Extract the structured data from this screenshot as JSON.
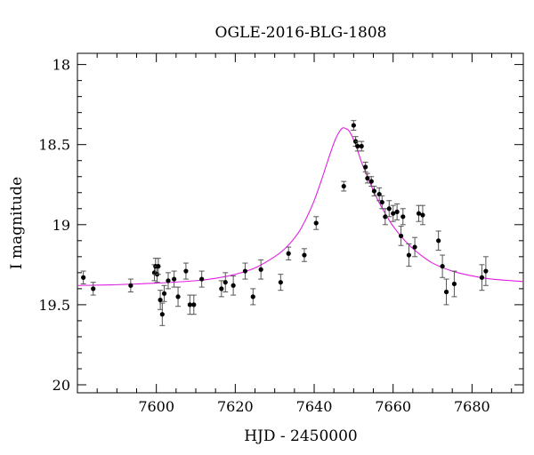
{
  "chart_data": {
    "type": "scatter",
    "title": "OGLE-2016-BLG-1808",
    "xlabel": "HJD - 2450000",
    "ylabel": "I magnitude",
    "xlim": [
      7580,
      7693
    ],
    "ylim": [
      20.05,
      17.93
    ],
    "y_inverted": true,
    "x_major_ticks": [
      7600,
      7620,
      7640,
      7660,
      7680
    ],
    "x_tick_labels": [
      "7600",
      "7620",
      "7640",
      "7660",
      "7680"
    ],
    "x_minor_step": 5,
    "y_major_ticks": [
      18,
      18.5,
      19,
      19.5,
      20
    ],
    "y_tick_labels": [
      "18",
      "18.5",
      "19",
      "19.5",
      "20"
    ],
    "y_minor_step": 0.1,
    "grid": false,
    "colors": {
      "points": "#000000",
      "model": "#e020e0",
      "axes": "#000000"
    },
    "model": {
      "name": "",
      "x": [
        7580,
        7590,
        7600,
        7610,
        7615,
        7620,
        7625,
        7630,
        7633,
        7636,
        7638,
        7640,
        7642,
        7644,
        7645.5,
        7647,
        7648,
        7649,
        7650.5,
        7652,
        7654,
        7656,
        7658,
        7660,
        7663,
        7666,
        7670,
        7675,
        7680,
        7685,
        7693
      ],
      "y": [
        19.38,
        19.375,
        19.365,
        19.35,
        19.335,
        19.31,
        19.27,
        19.2,
        19.14,
        19.05,
        18.96,
        18.85,
        18.71,
        18.56,
        18.46,
        18.4,
        18.4,
        18.42,
        18.5,
        18.61,
        18.73,
        18.84,
        18.93,
        19.01,
        19.1,
        19.17,
        19.24,
        19.29,
        19.32,
        19.34,
        19.355
      ]
    },
    "series": [
      {
        "name": "",
        "x": [
          7581.5,
          7584,
          7593.5,
          7599.5,
          7599.8,
          7600.2,
          7600.5,
          7601,
          7601.5,
          7602,
          7603,
          7604.5,
          7605.5,
          7607.5,
          7608.5,
          7609.5,
          7611.5,
          7616.5,
          7617.5,
          7619.5,
          7622.5,
          7624.5,
          7626.5,
          7631.5,
          7633.5,
          7637.5,
          7640.5,
          7647.5,
          7650,
          7650.5,
          7651,
          7652,
          7653,
          7653.5,
          7654.5,
          7655.2,
          7656.5,
          7657.2,
          7658,
          7659,
          7660,
          7661,
          7662,
          7662.5,
          7664,
          7665.5,
          7666.5,
          7667.5,
          7671.5,
          7672.5,
          7673.5,
          7675.5,
          7682.5,
          7683.5
        ],
        "y": [
          19.33,
          19.4,
          19.38,
          19.3,
          19.26,
          19.31,
          19.26,
          19.47,
          19.56,
          19.43,
          19.35,
          19.34,
          19.45,
          19.29,
          19.5,
          19.5,
          19.34,
          19.4,
          19.36,
          19.38,
          19.29,
          19.45,
          19.28,
          19.36,
          19.18,
          19.19,
          18.99,
          18.76,
          18.38,
          18.48,
          18.51,
          18.51,
          18.64,
          18.71,
          18.73,
          18.79,
          18.81,
          18.86,
          18.95,
          18.9,
          18.93,
          18.92,
          19.07,
          18.95,
          19.19,
          19.14,
          18.93,
          18.94,
          19.1,
          19.26,
          19.42,
          19.37,
          19.33,
          19.29
        ],
        "yerr": [
          0.04,
          0.04,
          0.04,
          0.05,
          0.05,
          0.05,
          0.05,
          0.06,
          0.07,
          0.05,
          0.05,
          0.05,
          0.06,
          0.05,
          0.06,
          0.06,
          0.05,
          0.05,
          0.06,
          0.06,
          0.05,
          0.05,
          0.06,
          0.05,
          0.04,
          0.04,
          0.04,
          0.03,
          0.03,
          0.03,
          0.03,
          0.03,
          0.03,
          0.03,
          0.03,
          0.03,
          0.04,
          0.04,
          0.05,
          0.05,
          0.05,
          0.05,
          0.06,
          0.05,
          0.07,
          0.06,
          0.05,
          0.06,
          0.06,
          0.07,
          0.08,
          0.08,
          0.08,
          0.09
        ]
      }
    ]
  }
}
